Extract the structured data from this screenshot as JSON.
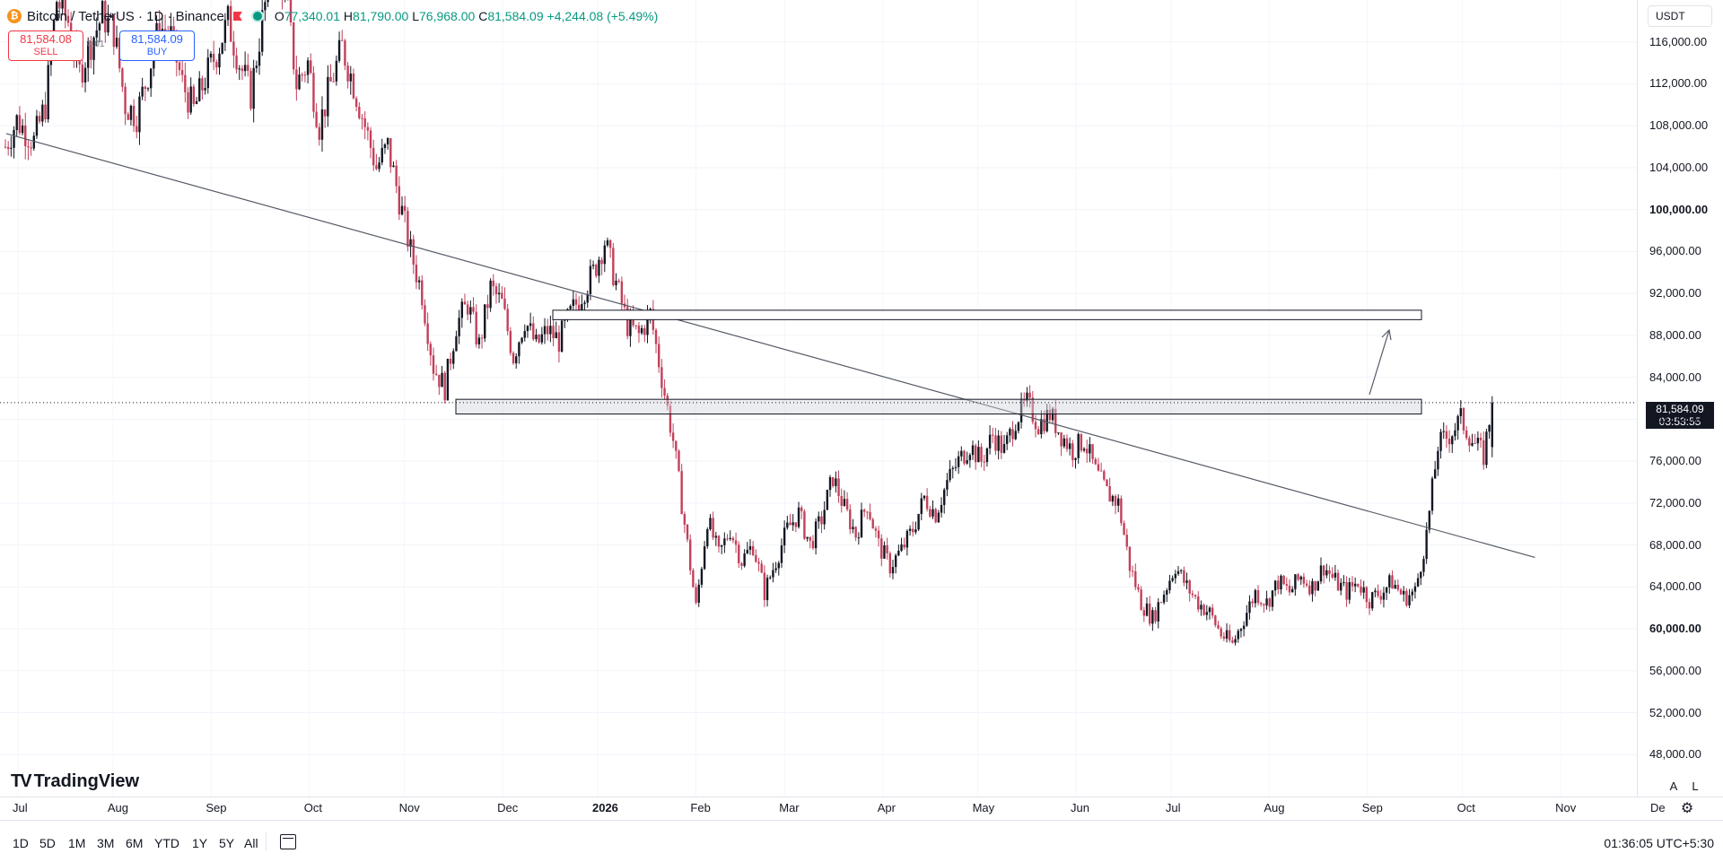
{
  "header": {
    "symbol_icon": "bitcoin-icon",
    "title": "Bitcoin / TetherUS · 1D · Binance",
    "ohlc": {
      "o_label": "O",
      "o": "77,340.01",
      "h_label": "H",
      "h": "81,790.00",
      "l_label": "L",
      "l": "76,968.00",
      "c_label": "C",
      "c": "81,584.09",
      "change": "+4,244.08 (+5.49%)"
    }
  },
  "trade": {
    "sell_price": "81,584.08",
    "sell_label": "SELL",
    "spread": "0.01",
    "buy_price": "81,584.09",
    "buy_label": "BUY"
  },
  "currency": "USDT",
  "price_axis": {
    "labels": [
      "116,000.00",
      "112,000.00",
      "108,000.00",
      "104,000.00",
      "100,000.00",
      "96,000.00",
      "92,000.00",
      "88,000.00",
      "84,000.00",
      "80,000.00",
      "76,000.00",
      "72,000.00",
      "68,000.00",
      "64,000.00",
      "60,000.00",
      "56,000.00",
      "52,000.00",
      "48,000.00"
    ],
    "bold": [
      "100,000.00",
      "60,000.00"
    ],
    "current_price": "81,584.09",
    "countdown": "03:53:55",
    "auto_label": "A",
    "log_label": "L"
  },
  "time_axis": [
    "Jul",
    "Aug",
    "Sep",
    "Oct",
    "Nov",
    "Dec",
    "2026",
    "Feb",
    "Mar",
    "Apr",
    "May",
    "Jun",
    "Jul",
    "Aug",
    "Sep",
    "Oct",
    "Nov",
    "De"
  ],
  "brand": "TradingView",
  "ranges": [
    "1D",
    "5D",
    "1M",
    "3M",
    "6M",
    "YTD",
    "1Y",
    "5Y",
    "All"
  ],
  "clock": "01:36:05 UTC+5:30",
  "colors": {
    "up": "#089981",
    "down": "#f23645",
    "candle_up": "#131722",
    "candle_down": "#c2405a",
    "zone_fill": "#d1d4dc",
    "line": "#555a66"
  },
  "chart_data": {
    "type": "candlestick",
    "ylim": [
      44000,
      120000
    ],
    "x_labels": [
      "Jul",
      "Aug",
      "Sep",
      "Oct",
      "Nov",
      "Dec",
      "2026",
      "Feb",
      "Mar",
      "Apr",
      "May",
      "Jun",
      "Jul",
      "Aug",
      "Sep",
      "Oct",
      "Nov",
      "De"
    ],
    "last_price": 81584.09,
    "close_path": [
      [
        0,
        106000
      ],
      [
        4,
        108500
      ],
      [
        10,
        106500
      ],
      [
        14,
        110000
      ],
      [
        18,
        120000
      ],
      [
        22,
        118000
      ],
      [
        26,
        113000
      ],
      [
        30,
        116000
      ],
      [
        34,
        118500
      ],
      [
        38,
        117000
      ],
      [
        42,
        110000
      ],
      [
        46,
        109000
      ],
      [
        50,
        113000
      ],
      [
        54,
        117500
      ],
      [
        58,
        116500
      ],
      [
        62,
        112000
      ],
      [
        66,
        109500
      ],
      [
        70,
        112500
      ],
      [
        74,
        115000
      ],
      [
        78,
        118000
      ],
      [
        82,
        114000
      ],
      [
        86,
        111000
      ],
      [
        90,
        118000
      ],
      [
        94,
        124000
      ],
      [
        98,
        121000
      ],
      [
        102,
        112000
      ],
      [
        106,
        114000
      ],
      [
        110,
        108000
      ],
      [
        114,
        112000
      ],
      [
        118,
        115500
      ],
      [
        122,
        112000
      ],
      [
        126,
        108000
      ],
      [
        130,
        104000
      ],
      [
        134,
        106000
      ],
      [
        138,
        101000
      ],
      [
        142,
        96000
      ],
      [
        146,
        92000
      ],
      [
        150,
        85000
      ],
      [
        154,
        83000
      ],
      [
        158,
        89000
      ],
      [
        162,
        91000
      ],
      [
        166,
        87000
      ],
      [
        170,
        92500
      ],
      [
        174,
        91000
      ],
      [
        178,
        86000
      ],
      [
        182,
        89500
      ],
      [
        186,
        87000
      ],
      [
        190,
        88500
      ],
      [
        194,
        87500
      ],
      [
        198,
        90000
      ],
      [
        202,
        92000
      ],
      [
        206,
        94000
      ],
      [
        210,
        97000
      ],
      [
        214,
        93000
      ],
      [
        218,
        89000
      ],
      [
        222,
        88000
      ],
      [
        226,
        90000
      ],
      [
        230,
        84000
      ],
      [
        234,
        78000
      ],
      [
        238,
        70000
      ],
      [
        242,
        62000
      ],
      [
        246,
        70500
      ],
      [
        250,
        67000
      ],
      [
        254,
        69500
      ],
      [
        258,
        66500
      ],
      [
        262,
        68000
      ],
      [
        266,
        63500
      ],
      [
        270,
        66500
      ],
      [
        274,
        69500
      ],
      [
        278,
        71000
      ],
      [
        282,
        68000
      ],
      [
        286,
        70500
      ],
      [
        290,
        74500
      ],
      [
        294,
        71500
      ],
      [
        298,
        69000
      ],
      [
        302,
        72000
      ],
      [
        306,
        68000
      ],
      [
        310,
        66000
      ],
      [
        314,
        67500
      ],
      [
        318,
        69500
      ],
      [
        322,
        72500
      ],
      [
        326,
        71000
      ],
      [
        330,
        74000
      ],
      [
        334,
        76000
      ],
      [
        338,
        77500
      ],
      [
        342,
        76000
      ],
      [
        346,
        78500
      ],
      [
        350,
        77000
      ],
      [
        354,
        80000
      ],
      [
        358,
        81500
      ],
      [
        362,
        79500
      ],
      [
        366,
        80500
      ],
      [
        370,
        78500
      ],
      [
        374,
        77000
      ],
      [
        378,
        78000
      ],
      [
        382,
        75000
      ],
      [
        386,
        73000
      ],
      [
        390,
        72000
      ],
      [
        394,
        66000
      ],
      [
        398,
        62500
      ],
      [
        402,
        61000
      ],
      [
        406,
        63500
      ],
      [
        410,
        66000
      ],
      [
        414,
        64000
      ],
      [
        418,
        62500
      ],
      [
        422,
        61500
      ],
      [
        426,
        59500
      ],
      [
        430,
        58500
      ],
      [
        434,
        61000
      ],
      [
        438,
        63500
      ],
      [
        442,
        62500
      ],
      [
        446,
        64500
      ],
      [
        450,
        63500
      ],
      [
        454,
        65000
      ],
      [
        458,
        64000
      ],
      [
        462,
        66000
      ],
      [
        466,
        64500
      ],
      [
        470,
        63500
      ],
      [
        474,
        64500
      ],
      [
        478,
        62800
      ],
      [
        482,
        63500
      ],
      [
        486,
        64500
      ],
      [
        490,
        63000
      ],
      [
        494,
        63500
      ],
      [
        498,
        69000
      ],
      [
        502,
        77500
      ],
      [
        506,
        78500
      ],
      [
        510,
        80000
      ],
      [
        514,
        78000
      ],
      [
        518,
        76500
      ],
      [
        521,
        81584
      ]
    ]
  },
  "drawings": {
    "trendline": [
      [
        -6,
        107000
      ],
      [
        514,
        67500
      ]
    ],
    "zone_upper": {
      "x0": 150,
      "x1": 525,
      "y0": 89500,
      "y1": 90400
    },
    "zone_lower": {
      "x0": 125,
      "x1": 525,
      "y0": 80500,
      "y1": 81900
    },
    "arrow": [
      [
        523,
        83000
      ],
      [
        530,
        89000
      ]
    ]
  }
}
